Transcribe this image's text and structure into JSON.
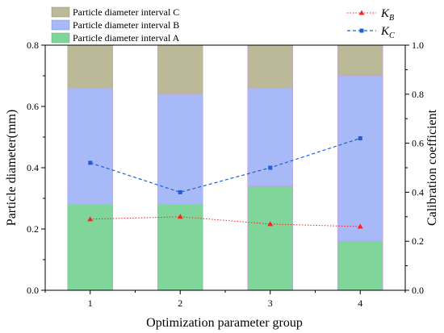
{
  "chart_data": {
    "type": "bar",
    "title": "",
    "xlabel": "Optimization parameter group",
    "ylabel": "Particle diameter(mm)",
    "y2label": "Calibration coefficient",
    "categories": [
      "1",
      "2",
      "3",
      "4"
    ],
    "ylim": [
      0,
      0.8
    ],
    "y2lim": [
      0,
      1.0
    ],
    "yticks": [
      "0.0",
      "0.2",
      "0.4",
      "0.6",
      "0.8"
    ],
    "y2ticks": [
      "0.0",
      "0.2",
      "0.4",
      "0.6",
      "0.8",
      "1.0"
    ],
    "stacked": true,
    "series": [
      {
        "name": "Particle diameter interval A",
        "axis": "left",
        "kind": "bar",
        "color": "#7fd59a",
        "values": [
          0.28,
          0.28,
          0.34,
          0.16
        ]
      },
      {
        "name": "Particle diameter interval B",
        "axis": "left",
        "kind": "bar",
        "color": "#a7b9f7",
        "values": [
          0.38,
          0.36,
          0.32,
          0.54
        ]
      },
      {
        "name": "Particle diameter interval C",
        "axis": "left",
        "kind": "bar",
        "color": "#bcb999",
        "values": [
          0.14,
          0.16,
          0.14,
          0.1
        ]
      },
      {
        "name": "K",
        "subscript": "B",
        "axis": "right",
        "kind": "line",
        "color": "#ff2020",
        "marker": "triangle",
        "dash": "dotted",
        "values": [
          0.29,
          0.3,
          0.27,
          0.26
        ]
      },
      {
        "name": "K",
        "subscript": "C",
        "axis": "right",
        "kind": "line",
        "color": "#1f5fd6",
        "marker": "square",
        "dash": "dashed",
        "values": [
          0.52,
          0.4,
          0.5,
          0.62
        ]
      }
    ],
    "legends": {
      "bars": "top-left",
      "lines": "top-right"
    },
    "grid": false
  }
}
